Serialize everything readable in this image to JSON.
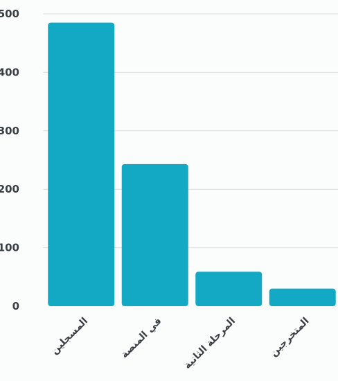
{
  "chart_data": {
    "type": "bar",
    "categories": [
      "المسجلين",
      "في المنصة",
      "المرحلة الثانية",
      "المتخرجين"
    ],
    "values": [
      485,
      243,
      59,
      30
    ],
    "ylim": [
      0,
      500
    ],
    "yticks": [
      0,
      100,
      200,
      300,
      400,
      500
    ],
    "grid": true,
    "colors": {
      "bar": "#13a8c4",
      "grid": "#d9dde0",
      "text": "#3a3f44"
    }
  }
}
